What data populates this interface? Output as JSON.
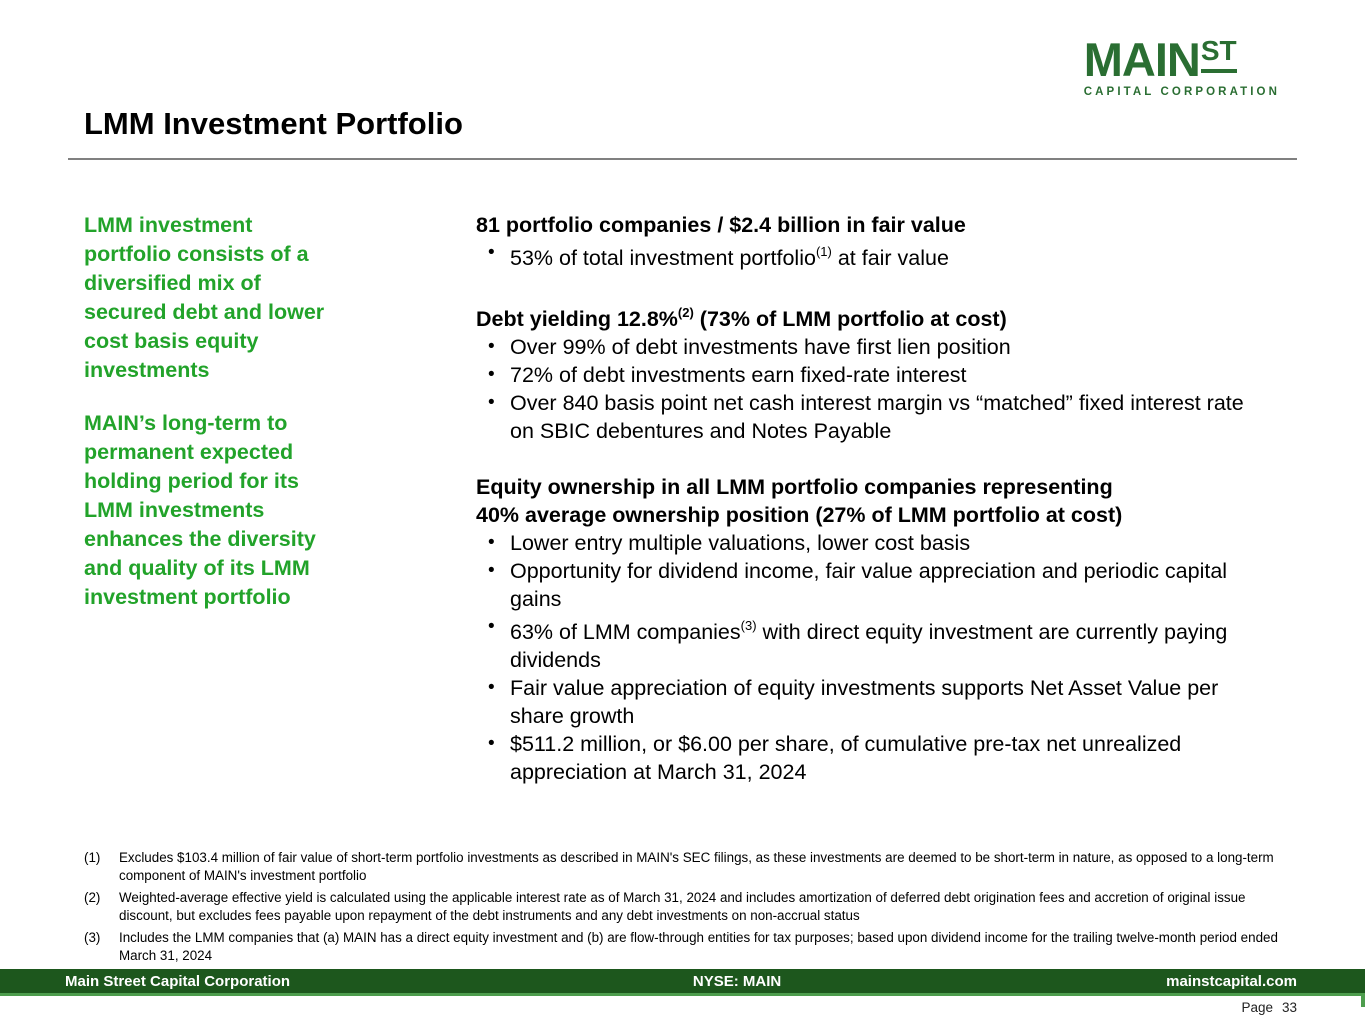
{
  "colors": {
    "accent_green": "#22a32a",
    "logo_green": "#2a6e32",
    "footer_green": "#1d571d",
    "footer_edge": "#4d9d4d",
    "rule_gray": "#808080"
  },
  "logo": {
    "main": "MAIN",
    "st": "ST",
    "subtitle": "CAPITAL CORPORATION"
  },
  "title": "LMM Investment Portfolio",
  "left_column": {
    "paragraphs": [
      {
        "lines": [
          "LMM investment",
          "portfolio consists of a",
          "diversified mix of",
          "secured debt and lower",
          "cost basis equity",
          "investments"
        ]
      },
      {
        "lines": [
          "MAIN’s long-term to",
          "permanent expected",
          "holding period for its",
          "LMM investments",
          "enhances the diversity",
          "and quality of its LMM",
          "investment portfolio"
        ]
      }
    ]
  },
  "sections": [
    {
      "heading": "81 portfolio companies / $2.4 billion in fair value",
      "bullets": [
        {
          "pre": "53% of total investment portfolio",
          "sup": "(1)",
          "post": " at fair value"
        }
      ]
    },
    {
      "heading_pre": "Debt yielding 12.8%",
      "heading_sup": "(2)",
      "heading_post": " (73% of LMM portfolio at cost)",
      "bullets": [
        {
          "text": "Over 99% of debt investments have first lien position"
        },
        {
          "text": "72% of debt investments earn fixed-rate interest"
        },
        {
          "text": "Over 840 basis point net cash interest margin vs “matched” fixed interest rate on SBIC debentures and Notes Payable"
        }
      ]
    },
    {
      "heading_lines": [
        "Equity ownership in all LMM portfolio companies representing",
        "40% average ownership position (27% of LMM portfolio at cost)"
      ],
      "bullets": [
        {
          "text": "Lower entry multiple valuations, lower cost basis"
        },
        {
          "text": "Opportunity for dividend income, fair value appreciation and periodic capital gains"
        },
        {
          "pre": "63% of LMM companies",
          "sup": "(3)",
          "post": " with direct equity investment are currently paying dividends"
        },
        {
          "text": "Fair value appreciation of equity investments supports Net Asset Value per share growth"
        },
        {
          "text": "$511.2 million, or $6.00 per share, of cumulative pre-tax net unrealized appreciation at March 31, 2024"
        }
      ]
    }
  ],
  "footnotes": [
    {
      "num": "(1)",
      "text": "Excludes $103.4 million of fair value of short-term portfolio investments as described in MAIN's SEC filings, as these investments are deemed to be short-term in nature, as opposed to a long-term component of MAIN's investment portfolio"
    },
    {
      "num": "(2)",
      "text": "Weighted-average effective yield is calculated using the applicable interest rate as of March 31, 2024 and includes amortization of deferred debt origination fees and accretion of original issue discount, but excludes fees payable upon repayment of the debt instruments and any debt investments on non-accrual status"
    },
    {
      "num": "(3)",
      "text": "Includes the LMM companies that (a) MAIN has a direct equity investment and (b) are flow-through entities for tax purposes; based upon dividend income for the trailing twelve-month period ended March 31, 2024"
    }
  ],
  "footer": {
    "left": "Main Street Capital Corporation",
    "center": "NYSE: MAIN",
    "right": "mainstcapital.com",
    "page_label": "Page",
    "page_number": "33"
  }
}
